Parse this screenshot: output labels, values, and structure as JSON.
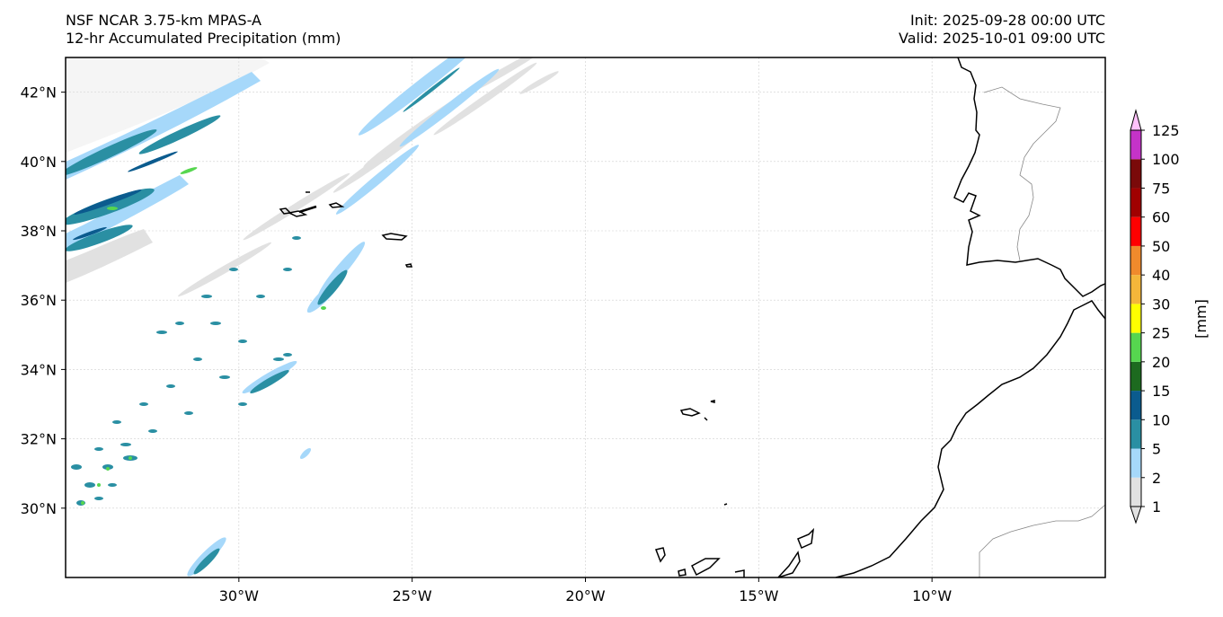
{
  "header": {
    "left_line1": "NSF NCAR 3.75-km MPAS-A",
    "left_line2": "12-hr Accumulated Precipitation (mm)",
    "right_line1": "Init: 2025-09-28 00:00 UTC",
    "right_line2": "Valid: 2025-10-01 09:00 UTC"
  },
  "map": {
    "lon_range": [
      -35,
      -5
    ],
    "lat_range": [
      28,
      43
    ],
    "lon_ticks": [
      {
        "value": -30,
        "label": "30°W"
      },
      {
        "value": -25,
        "label": "25°W"
      },
      {
        "value": -20,
        "label": "20°W"
      },
      {
        "value": -15,
        "label": "15°W"
      },
      {
        "value": -10,
        "label": "10°W"
      }
    ],
    "lat_ticks": [
      {
        "value": 42,
        "label": "42°N"
      },
      {
        "value": 40,
        "label": "40°N"
      },
      {
        "value": 38,
        "label": "38°N"
      },
      {
        "value": 36,
        "label": "36°N"
      },
      {
        "value": 34,
        "label": "34°N"
      },
      {
        "value": 32,
        "label": "32°N"
      },
      {
        "value": 30,
        "label": "30°N"
      }
    ],
    "gridlines": true
  },
  "colorbar": {
    "label": "[mm]",
    "levels": [
      "1",
      "2",
      "5",
      "10",
      "15",
      "20",
      "25",
      "30",
      "40",
      "50",
      "60",
      "75",
      "100",
      "125"
    ],
    "colors": [
      "#e1e1e1",
      "#a6d8fa",
      "#2a8fa3",
      "#0b5b8e",
      "#1d6a1f",
      "#56d64f",
      "#ffff00",
      "#f4b63a",
      "#f08a2c",
      "#ff0000",
      "#a00000",
      "#7a0a0a",
      "#c533c8",
      "#ffc2fa"
    ],
    "extend": "both"
  },
  "colors": {
    "coast": "#000000",
    "border": "#888888",
    "grid": "#cfcfcf"
  }
}
